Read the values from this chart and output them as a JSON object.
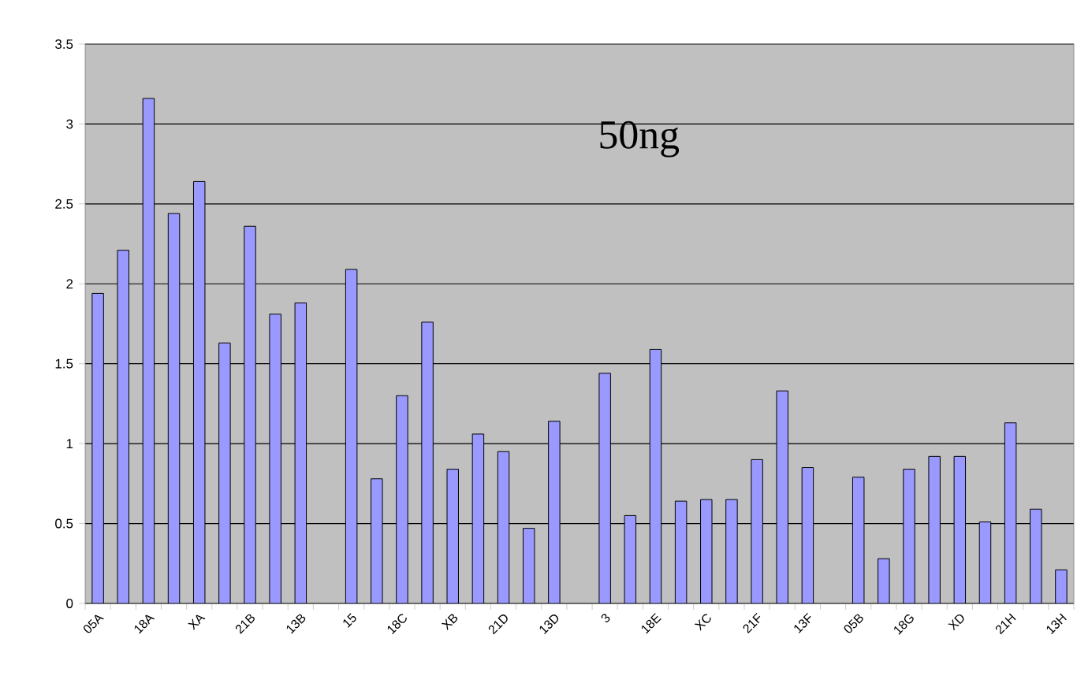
{
  "chart_data": {
    "type": "bar",
    "categories": [
      "05A",
      null,
      "18A",
      null,
      "XA",
      null,
      "21B",
      null,
      "13B",
      null,
      "15",
      null,
      "18C",
      null,
      "XB",
      null,
      "21D",
      null,
      "13D",
      null,
      "3",
      null,
      "18E",
      null,
      "XC",
      null,
      "21F",
      null,
      "13F",
      null,
      "05B",
      null,
      "18G",
      null,
      "XD",
      null,
      "21H",
      null,
      "13H"
    ],
    "values": [
      1.94,
      2.21,
      3.16,
      2.44,
      2.64,
      1.63,
      2.36,
      1.81,
      1.88,
      null,
      2.09,
      0.78,
      1.3,
      1.76,
      0.84,
      1.06,
      0.95,
      0.47,
      1.14,
      null,
      1.44,
      0.55,
      1.59,
      0.64,
      0.65,
      0.65,
      0.9,
      1.33,
      0.85,
      null,
      0.79,
      0.28,
      0.84,
      0.92,
      0.92,
      0.51,
      1.13,
      0.59,
      0.21
    ],
    "color": "#9999ff",
    "ylim": [
      0,
      3.5
    ],
    "yticks": [
      0,
      0.5,
      1,
      1.5,
      2,
      2.5,
      3,
      3.5
    ],
    "grid": "y",
    "annotations": [
      "50ng"
    ]
  }
}
